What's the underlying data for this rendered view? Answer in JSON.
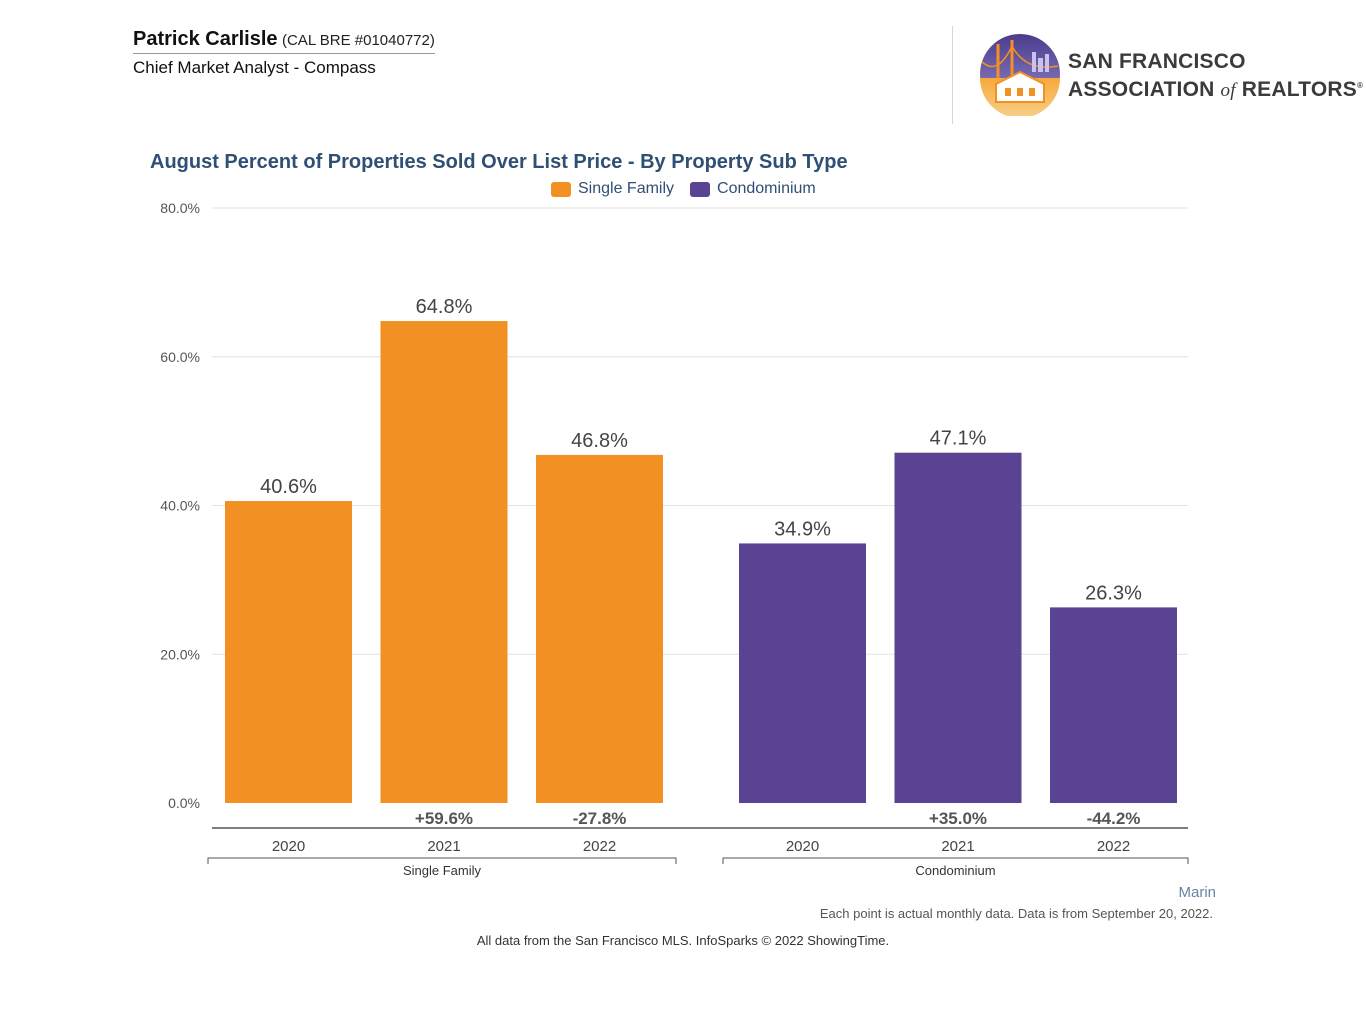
{
  "header": {
    "name": "Patrick Carlisle",
    "license": "(CAL BRE #01040772)",
    "role": "Chief Market Analyst - Compass",
    "logo_line1": "SAN FRANCISCO",
    "logo_line2a": "ASSOCIATION",
    "logo_of": "of",
    "logo_line2b": "REALTORS",
    "logo_reg": "®"
  },
  "colors": {
    "single_family": "#f29023",
    "condominium": "#5b4393",
    "title": "#2f4f75"
  },
  "chart_data": {
    "type": "bar",
    "title": "August Percent of Properties Sold Over List Price - By Property Sub Type",
    "ylim": [
      0,
      80
    ],
    "yticks": [
      "0.0%",
      "20.0%",
      "40.0%",
      "60.0%",
      "80.0%"
    ],
    "ytick_values": [
      0,
      20,
      40,
      60,
      80
    ],
    "legend": [
      "Single Family",
      "Condominium"
    ],
    "groups": [
      {
        "name": "Single Family",
        "categories": [
          "2020",
          "2021",
          "2022"
        ],
        "values": [
          40.6,
          64.8,
          46.8
        ],
        "labels": [
          "40.6%",
          "64.8%",
          "46.8%"
        ],
        "changes": [
          "",
          "+59.6%",
          "-27.8%"
        ]
      },
      {
        "name": "Condominium",
        "categories": [
          "2020",
          "2021",
          "2022"
        ],
        "values": [
          34.9,
          47.1,
          26.3
        ],
        "labels": [
          "34.9%",
          "47.1%",
          "26.3%"
        ],
        "changes": [
          "",
          "+35.0%",
          "-44.2%"
        ]
      }
    ]
  },
  "footer": {
    "region": "Marin",
    "note": "Each point is actual monthly data. Data is from September 20, 2022.",
    "source": "All data from the San Francisco MLS. InfoSparks © 2022 ShowingTime."
  }
}
